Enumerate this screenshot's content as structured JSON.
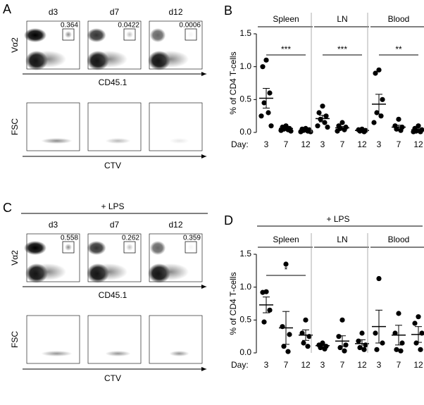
{
  "panel_a": {
    "label": "A",
    "days": [
      "d3",
      "d7",
      "d12"
    ],
    "gates": [
      0.364,
      0.0422,
      0.0006
    ],
    "y_label": "Vα2",
    "x_label": "CD45.1",
    "lower_y_label": "FSC",
    "lower_x_label": "CTV"
  },
  "panel_c": {
    "label": "C",
    "treatment": "+ LPS",
    "days": [
      "d3",
      "d7",
      "d12"
    ],
    "gates": [
      0.558,
      0.262,
      0.359
    ],
    "y_label": "Vα2",
    "x_label": "CD45.1",
    "lower_y_label": "FSC",
    "lower_x_label": "CTV"
  },
  "chart_data": [
    {
      "type": "dot",
      "panel_label": "B",
      "y_label": "% of CD4 T-cells",
      "day_label": "Day:",
      "categories": [
        "3",
        "7",
        "12"
      ],
      "ylim": [
        0,
        1.5
      ],
      "yticks": [
        {
          "value": 0,
          "label": "0.0"
        },
        {
          "value": 0.5,
          "label": "0.5"
        },
        {
          "value": 1,
          "label": "1.0"
        },
        {
          "value": 1.5,
          "label": "1.5"
        }
      ],
      "groups": [
        {
          "name": "Spleen",
          "significance": "***",
          "points": [
            [
              1.1,
              1.0,
              0.6,
              0.45,
              0.3,
              0.25,
              0.1
            ],
            [
              0.1,
              0.08,
              0.06,
              0.05,
              0.04,
              0.03,
              0.02
            ],
            [
              0.06,
              0.05,
              0.04,
              0.03,
              0.02,
              0.01,
              0.01
            ]
          ],
          "mean": [
            0.52,
            0.06,
            0.03
          ],
          "sem": [
            0.15,
            0.01,
            0.01
          ]
        },
        {
          "name": "LN",
          "significance": "***",
          "points": [
            [
              0.4,
              0.3,
              0.25,
              0.2,
              0.15,
              0.1,
              0.08
            ],
            [
              0.15,
              0.1,
              0.08,
              0.06,
              0.04,
              0.02
            ],
            [
              0.05,
              0.04,
              0.03,
              0.02,
              0.01
            ]
          ],
          "mean": [
            0.21,
            0.07,
            0.03
          ],
          "sem": [
            0.05,
            0.02,
            0.01
          ]
        },
        {
          "name": "Blood",
          "significance": "**",
          "points": [
            [
              0.95,
              0.9,
              0.5,
              0.3,
              0.25,
              0.15
            ],
            [
              0.2,
              0.1,
              0.08,
              0.05,
              0.03
            ],
            [
              0.1,
              0.06,
              0.04,
              0.02,
              0.01,
              0.01
            ]
          ],
          "mean": [
            0.43,
            0.08,
            0.04
          ],
          "sem": [
            0.15,
            0.03,
            0.015
          ]
        }
      ]
    },
    {
      "type": "dot",
      "panel_label": "D",
      "treatment": "+ LPS",
      "y_label": "% of CD4 T-cells",
      "day_label": "Day:",
      "categories": [
        "3",
        "7",
        "12"
      ],
      "ylim": [
        0,
        1.5
      ],
      "yticks": [
        {
          "value": 0,
          "label": "0.0"
        },
        {
          "value": 0.5,
          "label": "0.5"
        },
        {
          "value": 1,
          "label": "1.0"
        },
        {
          "value": 1.5,
          "label": "1.5"
        }
      ],
      "groups": [
        {
          "name": "Spleen",
          "significance": "*",
          "points": [
            [
              0.93,
              0.92,
              0.65,
              0.47
            ],
            [
              1.35,
              0.4,
              0.28,
              0.1,
              0.02
            ],
            [
              0.5,
              0.3,
              0.25,
              0.15,
              0.1
            ]
          ],
          "mean": [
            0.73,
            0.38,
            0.27
          ],
          "sem": [
            0.12,
            0.25,
            0.08
          ]
        },
        {
          "name": "LN",
          "points": [
            [
              0.15,
              0.12,
              0.1,
              0.08,
              0.06
            ],
            [
              0.5,
              0.25,
              0.12,
              0.08,
              0.03
            ],
            [
              0.3,
              0.18,
              0.12,
              0.08,
              0.05
            ]
          ],
          "mean": [
            0.11,
            0.18,
            0.14
          ],
          "sem": [
            0.02,
            0.08,
            0.06
          ]
        },
        {
          "name": "Blood",
          "points": [
            [
              1.13,
              0.3,
              0.15,
              0.05
            ],
            [
              0.6,
              0.3,
              0.15,
              0.05,
              0.03
            ],
            [
              0.55,
              0.45,
              0.3,
              0.15,
              0.05
            ]
          ],
          "mean": [
            0.4,
            0.27,
            0.28
          ],
          "sem": [
            0.25,
            0.15,
            0.12
          ]
        }
      ]
    }
  ]
}
